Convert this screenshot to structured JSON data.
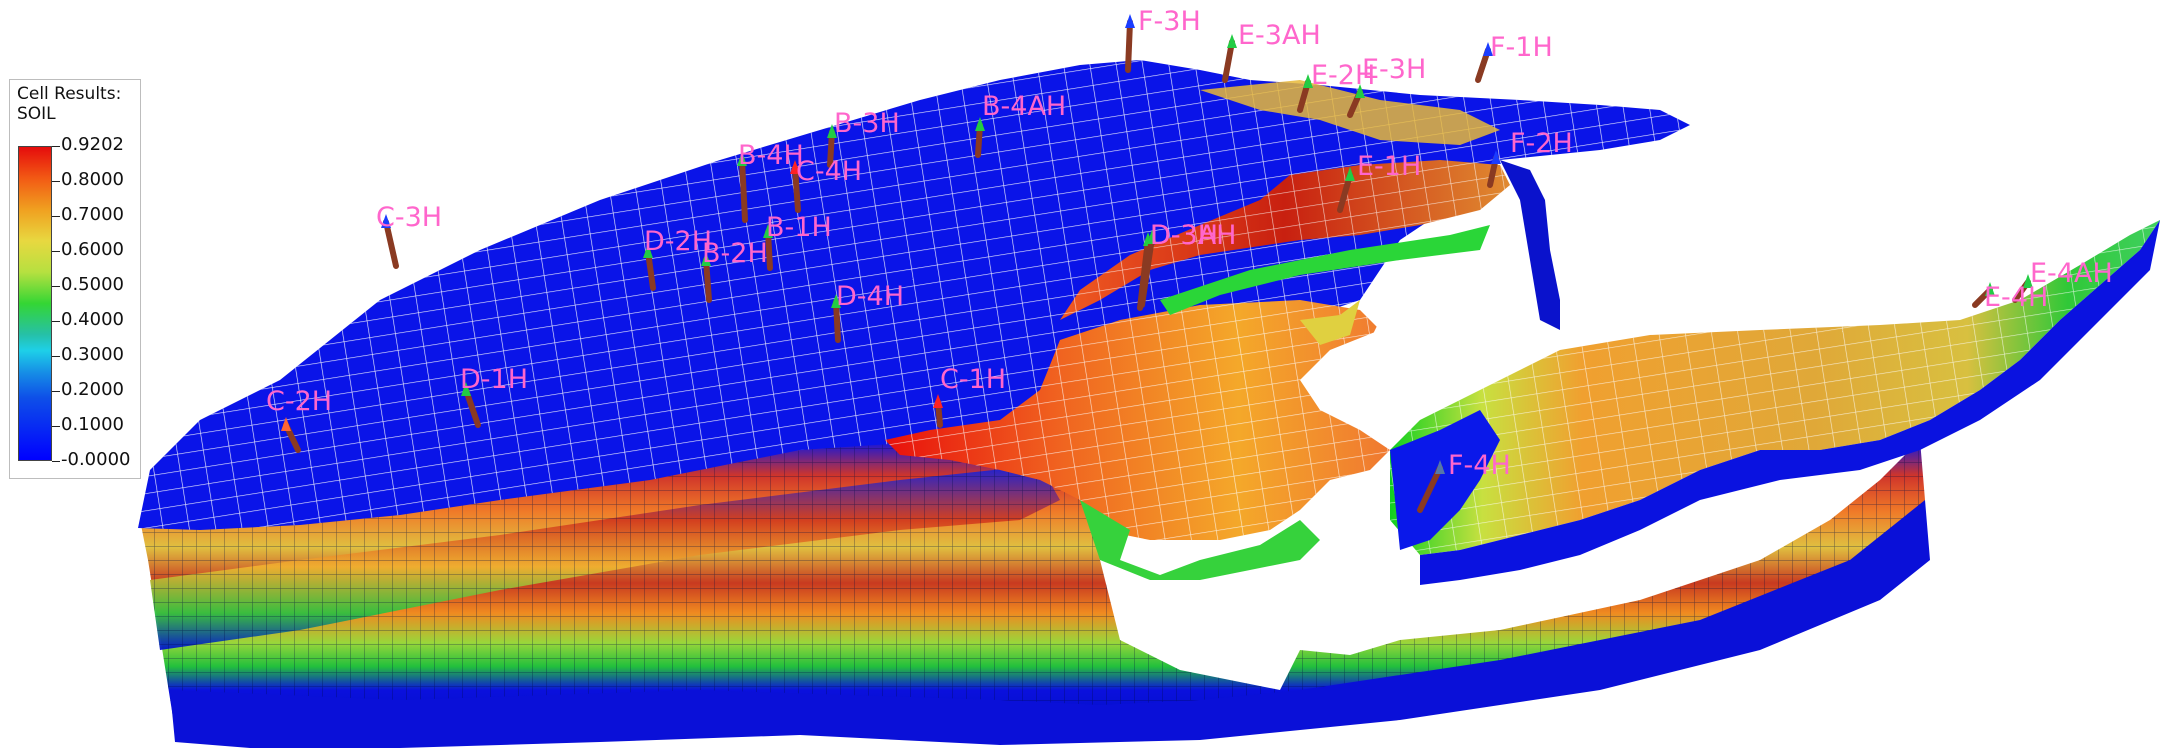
{
  "legend": {
    "title_line1": "Cell Results:",
    "title_line2": "SOIL",
    "ticks": [
      "0.9202",
      "0.8000",
      "0.7000",
      "0.6000",
      "0.5000",
      "0.4000",
      "0.3000",
      "0.2000",
      "0.1000",
      "-0.0000"
    ]
  },
  "wells": [
    {
      "name": "F-3H",
      "color": "#1a3cff"
    },
    {
      "name": "E-3AH",
      "color": "#22cc44"
    },
    {
      "name": "E-2H",
      "color": "#22cc44"
    },
    {
      "name": "E-3H",
      "color": "#22cc44"
    },
    {
      "name": "F-1H",
      "color": "#1a3cff"
    },
    {
      "name": "B-3H",
      "color": "#22cc44"
    },
    {
      "name": "B-4AH",
      "color": "#22cc44"
    },
    {
      "name": "B-4H",
      "color": "#22cc44"
    },
    {
      "name": "F-2H",
      "color": "#1a3cff"
    },
    {
      "name": "E-1H",
      "color": "#22cc44"
    },
    {
      "name": "C-4H",
      "color": "#ff2222"
    },
    {
      "name": "C-3H",
      "color": "#1a3cff"
    },
    {
      "name": "B-1H",
      "color": "#22cc44"
    },
    {
      "name": "D-2H",
      "color": "#22cc44"
    },
    {
      "name": "B-2H",
      "color": "#22cc44"
    },
    {
      "name": "D-3AH",
      "color": "#22cc44"
    },
    {
      "name": "D-3H",
      "color": "#22cc44"
    },
    {
      "name": "D-4H",
      "color": "#22cc44"
    },
    {
      "name": "D-1H",
      "color": "#22cc44"
    },
    {
      "name": "C-2H",
      "color": "#ff6633"
    },
    {
      "name": "C-1H",
      "color": "#ff2222"
    },
    {
      "name": "F-4H",
      "color": "#5577aa"
    },
    {
      "name": "E-4H",
      "color": "#22cc44"
    },
    {
      "name": "E-4AH",
      "color": "#22cc44"
    }
  ],
  "colors": {
    "well_label": "#ff66cc",
    "low": "#0000ff",
    "high": "#e50c0c",
    "grid": "#ffffff"
  }
}
